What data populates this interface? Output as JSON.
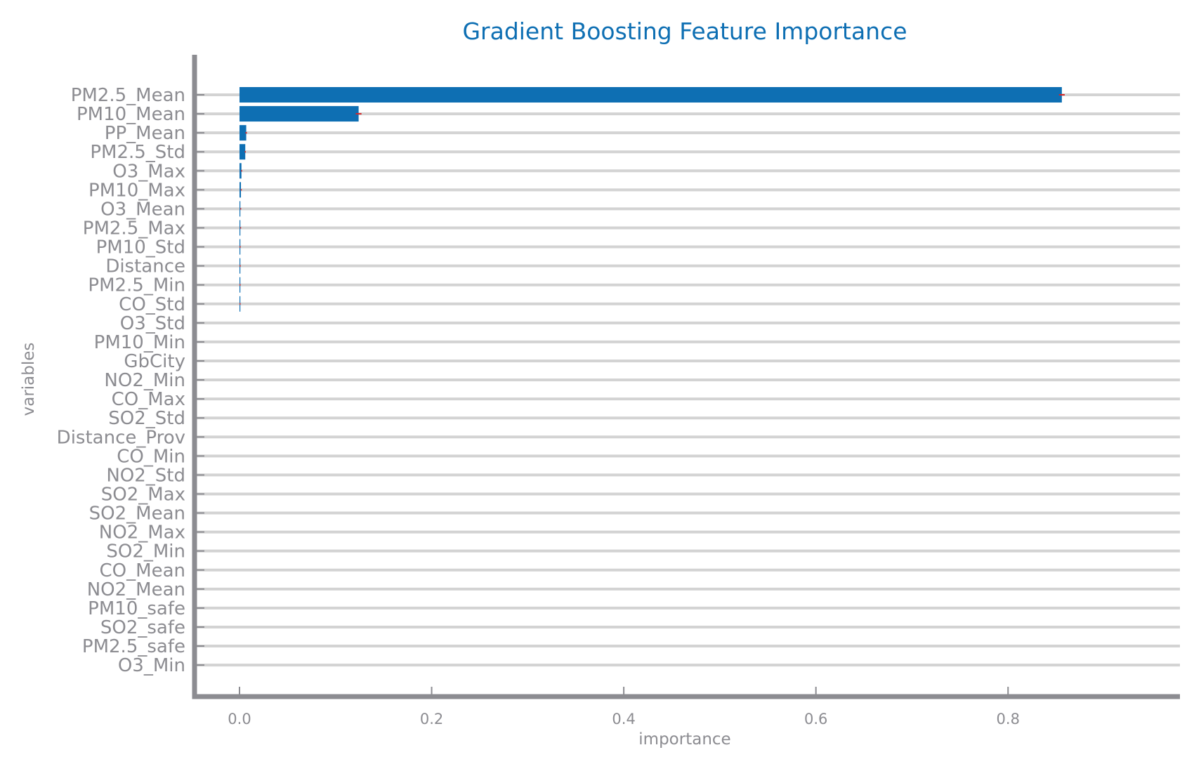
{
  "colors": {
    "title": "#0e6fb3",
    "bar": "#0e6fb3",
    "error": "#d62728",
    "axis": "#8c8c91",
    "label": "#8c8c91",
    "grid": "#d3d3d3",
    "background": "#ffffff"
  },
  "chart_data": {
    "type": "bar",
    "orientation": "horizontal",
    "title": "Gradient Boosting Feature Importance",
    "xlabel": "importance",
    "ylabel": "variables",
    "xlim": [
      -0.045,
      0.9
    ],
    "xticks": [
      0.0,
      0.2,
      0.4,
      0.6,
      0.8
    ],
    "xtick_labels": [
      "0.0",
      "0.2",
      "0.4",
      "0.6",
      "0.8"
    ],
    "grid": "horizontal",
    "categories": [
      "PM2.5_Mean",
      "PM10_Mean",
      "PP_Mean",
      "PM2.5_Std",
      "O3_Max",
      "PM10_Max",
      "O3_Mean",
      "PM2.5_Max",
      "PM10_Std",
      "Distance",
      "PM2.5_Min",
      "CO_Std",
      "O3_Std",
      "PM10_Min",
      "GbCity",
      "NO2_Min",
      "CO_Max",
      "SO2_Std",
      "Distance_Prov",
      "CO_Min",
      "NO2_Std",
      "SO2_Max",
      "SO2_Mean",
      "NO2_Max",
      "SO2_Min",
      "CO_Mean",
      "NO2_Mean",
      "PM10_safe",
      "SO2_safe",
      "PM2.5_safe",
      "O3_Min"
    ],
    "values": [
      0.856,
      0.124,
      0.007,
      0.006,
      0.002,
      0.0015,
      0.0008,
      0.0007,
      0.0002,
      0.0002,
      0.0001,
      0.0001,
      0,
      0,
      0,
      0,
      0,
      0,
      0,
      0,
      0,
      0,
      0,
      0,
      0,
      0,
      0,
      0,
      0,
      0,
      0
    ],
    "errors": [
      0.003,
      0.003,
      0.0008,
      0.0006,
      0.0003,
      0.0002,
      0.0001,
      0.0001,
      0.0001,
      0.0001,
      0.0001,
      0.0001,
      0,
      0,
      0,
      0,
      0,
      0,
      0,
      0,
      0,
      0,
      0,
      0,
      0,
      0,
      0,
      0,
      0,
      0,
      0
    ]
  }
}
